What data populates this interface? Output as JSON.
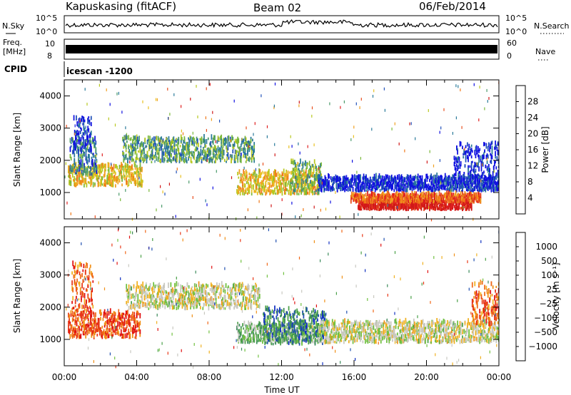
{
  "header": {
    "station": "Kapuskasing (fitACF)",
    "beam": "Beam 02",
    "date": "06/Feb/2014"
  },
  "noise_panel": {
    "left_label": "N.Sky",
    "left_ticks": [
      "10^5",
      "10^0"
    ],
    "right_label": "N.Search",
    "right_ticks": [
      "10^5",
      "10^0"
    ]
  },
  "freq_panel": {
    "left_label_1": "Freq.",
    "left_label_2": "[MHz]",
    "left_ticks": [
      "10",
      "8"
    ],
    "right_label": "Nave",
    "right_ticks": [
      "60",
      "0"
    ]
  },
  "cpid": {
    "label": "CPID",
    "value": "icescan -1200"
  },
  "chart_data": [
    {
      "type": "heatmap",
      "name": "power",
      "ylabel": "Slant Range [km]",
      "xlabel": "",
      "x_ticks": [
        "00:00",
        "04:00",
        "08:00",
        "12:00",
        "16:00",
        "20:00",
        "00:00"
      ],
      "x_range_hours": [
        0,
        24
      ],
      "y_ticks": [
        1000,
        2000,
        3000,
        4000
      ],
      "ylim": [
        180,
        4500
      ],
      "colorbar": {
        "label": "Power [dB]",
        "ticks": [
          "4",
          "8",
          "12",
          "16",
          "20",
          "24",
          "28"
        ],
        "colors": [
          "#1010e0",
          "#2050b8",
          "#2a7a9a",
          "#4a9a6a",
          "#7ab83a",
          "#b8c820",
          "#e8c020",
          "#f0a020",
          "#f07818",
          "#e85020",
          "#e02020",
          "#d01818"
        ]
      },
      "regions": [
        {
          "t0": 0.2,
          "t1": 4.3,
          "r0": 1150,
          "r1": 1800,
          "level": 0.55
        },
        {
          "t0": 0.3,
          "t1": 1.8,
          "r0": 1500,
          "r1": 2600,
          "level": 0.2
        },
        {
          "t0": 0.5,
          "t1": 1.5,
          "r0": 2200,
          "r1": 3300,
          "level": 0.05
        },
        {
          "t0": 3.2,
          "t1": 10.5,
          "r0": 1900,
          "r1": 2650,
          "level": 0.3
        },
        {
          "t0": 9.5,
          "t1": 14.0,
          "r0": 900,
          "r1": 1600,
          "level": 0.55
        },
        {
          "t0": 12.5,
          "t1": 14.2,
          "r0": 900,
          "r1": 1900,
          "level": 0.35
        },
        {
          "t0": 14.0,
          "t1": 24.0,
          "r0": 1000,
          "r1": 1450,
          "level": 0.05
        },
        {
          "t0": 16.2,
          "t1": 22.5,
          "r0": 420,
          "r1": 680,
          "level": 0.95
        },
        {
          "t0": 15.8,
          "t1": 23.0,
          "r0": 650,
          "r1": 900,
          "level": 0.75
        },
        {
          "t0": 21.5,
          "t1": 24.0,
          "r0": 1100,
          "r1": 2500,
          "level": 0.05
        }
      ]
    },
    {
      "type": "heatmap",
      "name": "velocity",
      "ylabel": "Slant Range [km]",
      "xlabel": "Time UT",
      "x_ticks": [
        "00:00",
        "04:00",
        "08:00",
        "12:00",
        "16:00",
        "20:00",
        "00:00"
      ],
      "x_range_hours": [
        0,
        24
      ],
      "y_ticks": [
        1000,
        2000,
        3000,
        4000
      ],
      "ylim": [
        180,
        4500
      ],
      "colorbar": {
        "label": "Velocity [m s⁻¹]",
        "ticks": [
          "1000",
          "500",
          "100",
          "25",
          "−25",
          "−100",
          "−500",
          "−1000"
        ],
        "colors": [
          "#1030c0",
          "#2050b0",
          "#3a8a5a",
          "#4aa048",
          "#70c040",
          "#c8c8c0",
          "#c8c8c0",
          "#f0b020",
          "#f09018",
          "#f06818",
          "#e83818",
          "#e01010"
        ]
      },
      "regions": [
        {
          "t0": 0.2,
          "t1": 4.2,
          "r0": 1000,
          "r1": 1800,
          "level": 0.85
        },
        {
          "t0": 0.4,
          "t1": 1.6,
          "r0": 1800,
          "r1": 3300,
          "level": 0.8
        },
        {
          "t0": 3.4,
          "t1": 10.8,
          "r0": 1900,
          "r1": 2650,
          "level": 0.5
        },
        {
          "t0": 9.5,
          "t1": 14.2,
          "r0": 850,
          "r1": 1450,
          "level": 0.35
        },
        {
          "t0": 11.0,
          "t1": 14.5,
          "r0": 800,
          "r1": 1900,
          "level": 0.2
        },
        {
          "t0": 14.0,
          "t1": 24.0,
          "r0": 850,
          "r1": 1500,
          "level": 0.5
        },
        {
          "t0": 22.5,
          "t1": 24.0,
          "r0": 1400,
          "r1": 2700,
          "level": 0.8
        }
      ]
    }
  ]
}
